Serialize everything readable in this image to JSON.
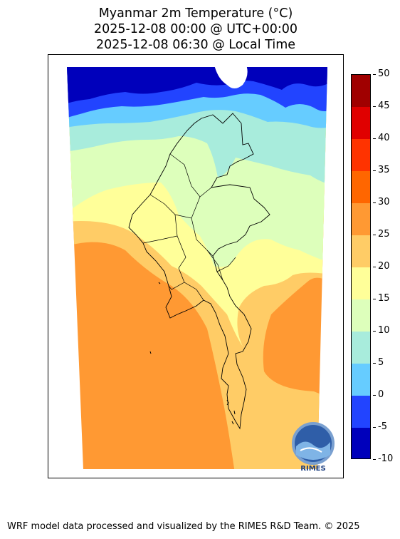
{
  "title": {
    "line1": "Myanmar 2m Temperature (°C)",
    "line2": "2025-12-08 00:00 @ UTC+00:00",
    "line3": "2025-12-08 06:30 @ Local Time"
  },
  "colorbar": {
    "levels": [
      "50",
      "45",
      "40",
      "35",
      "30",
      "25",
      "20",
      "15",
      "10",
      "5",
      "0",
      "-5",
      "-10"
    ],
    "colors": [
      "#a00000",
      "#e00000",
      "#ff3300",
      "#ff6600",
      "#ff9933",
      "#ffcc66",
      "#ffff99",
      "#ddffbb",
      "#a8ecdc",
      "#66ccff",
      "#2244ff",
      "#0000bb"
    ]
  },
  "logo": {
    "text": "RIMES"
  },
  "footer": "WRF model data processed and visualized by the RIMES R&D Team. © 2025"
}
